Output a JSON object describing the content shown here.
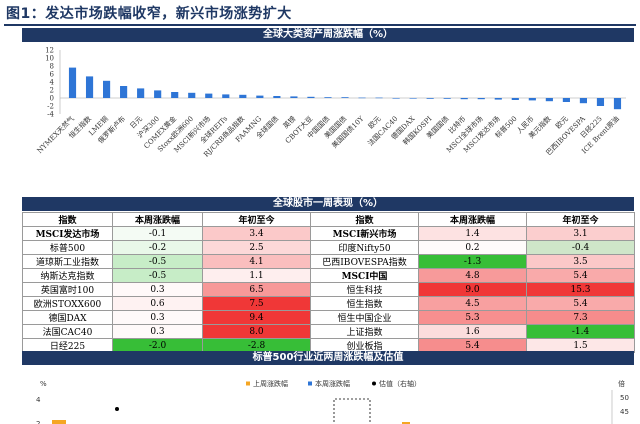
{
  "figure_title": "图1：发达市场跌幅收窄，新兴市场涨势扩大",
  "colors": {
    "navy": "#1f3864",
    "bar_blue": "#2e75d6",
    "orange": "#f5a623"
  },
  "chart_data": [
    {
      "type": "bar",
      "title": "全球大类资产周涨跌幅（%）",
      "ylim": [
        -4,
        12
      ],
      "yticks": [
        -4,
        -2,
        0,
        2,
        4,
        6,
        8,
        10,
        12
      ],
      "categories": [
        "NYMEX天然气",
        "恒生指数",
        "LME铜",
        "俄罗斯卢布",
        "日元",
        "沪深300",
        "COMEX黄金",
        "Stoxx欧洲600",
        "MSCI新兴市场",
        "全球REITs",
        "RJ/CRB商品指数",
        "FAAMNG",
        "全球国债",
        "英镑",
        "CBOT大豆",
        "中国国债",
        "美国国债",
        "美国国债10Y",
        "欧元",
        "法国CAC40",
        "德国DAX",
        "韩国KOSPI",
        "美国国债",
        "比特币",
        "MSCI全球市场",
        "MSCI发达市场",
        "标普500",
        "人民币",
        "美元指数",
        "欧元",
        "巴西IBOVESPA",
        "日经225",
        "ICE Brent原油"
      ],
      "values": [
        7.6,
        5.4,
        4.3,
        3.0,
        2.4,
        1.9,
        1.5,
        1.3,
        1.1,
        0.9,
        0.8,
        0.6,
        0.5,
        0.4,
        0.3,
        0.2,
        0.2,
        0.1,
        0.1,
        0.0,
        -0.1,
        -0.2,
        -0.2,
        -0.3,
        -0.3,
        -0.4,
        -0.5,
        -0.6,
        -0.8,
        -1.0,
        -1.3,
        -2.0,
        -2.8
      ]
    },
    {
      "type": "table",
      "title": "全球股市一周表现（%）",
      "headers": [
        "指数",
        "本周涨跌幅",
        "年初至今",
        "指数",
        "本周涨跌幅",
        "年初至今"
      ],
      "rows": [
        [
          "MSCI发达市场",
          "-0.1",
          "3.4",
          "MSCI新兴市场",
          "1.4",
          "3.1"
        ],
        [
          "标普500",
          "-0.2",
          "2.5",
          "印度Nifty50",
          "0.2",
          "-0.4"
        ],
        [
          "道琼斯工业指数",
          "-0.5",
          "4.1",
          "巴西IBOVESPA指数",
          "-1.3",
          "3.5"
        ],
        [
          "纳斯达克指数",
          "-0.5",
          "1.1",
          "MSCI中国",
          "4.8",
          "5.4"
        ],
        [
          "英国富时100",
          "0.3",
          "6.5",
          "恒生科技",
          "9.0",
          "15.3"
        ],
        [
          "欧洲STOXX600",
          "0.6",
          "7.5",
          "恒生指数",
          "4.5",
          "5.4"
        ],
        [
          "德国DAX",
          "0.3",
          "9.4",
          "恒生中国企业",
          "5.3",
          "7.3"
        ],
        [
          "法国CAC40",
          "0.3",
          "8.0",
          "上证指数",
          "1.6",
          "-1.4"
        ],
        [
          "日经225",
          "-2.0",
          "-2.8",
          "创业板指",
          "5.4",
          "1.5"
        ]
      ]
    },
    {
      "type": "bar",
      "title": "标普500行业近两周涨跌幅及估值",
      "ylabel": "%",
      "y2label": "倍",
      "yticks": [
        2,
        4
      ],
      "y2ticks": [
        45,
        50
      ],
      "legend": [
        "上周涨跌幅",
        "本周涨跌幅",
        "估值（右轴）"
      ]
    }
  ]
}
